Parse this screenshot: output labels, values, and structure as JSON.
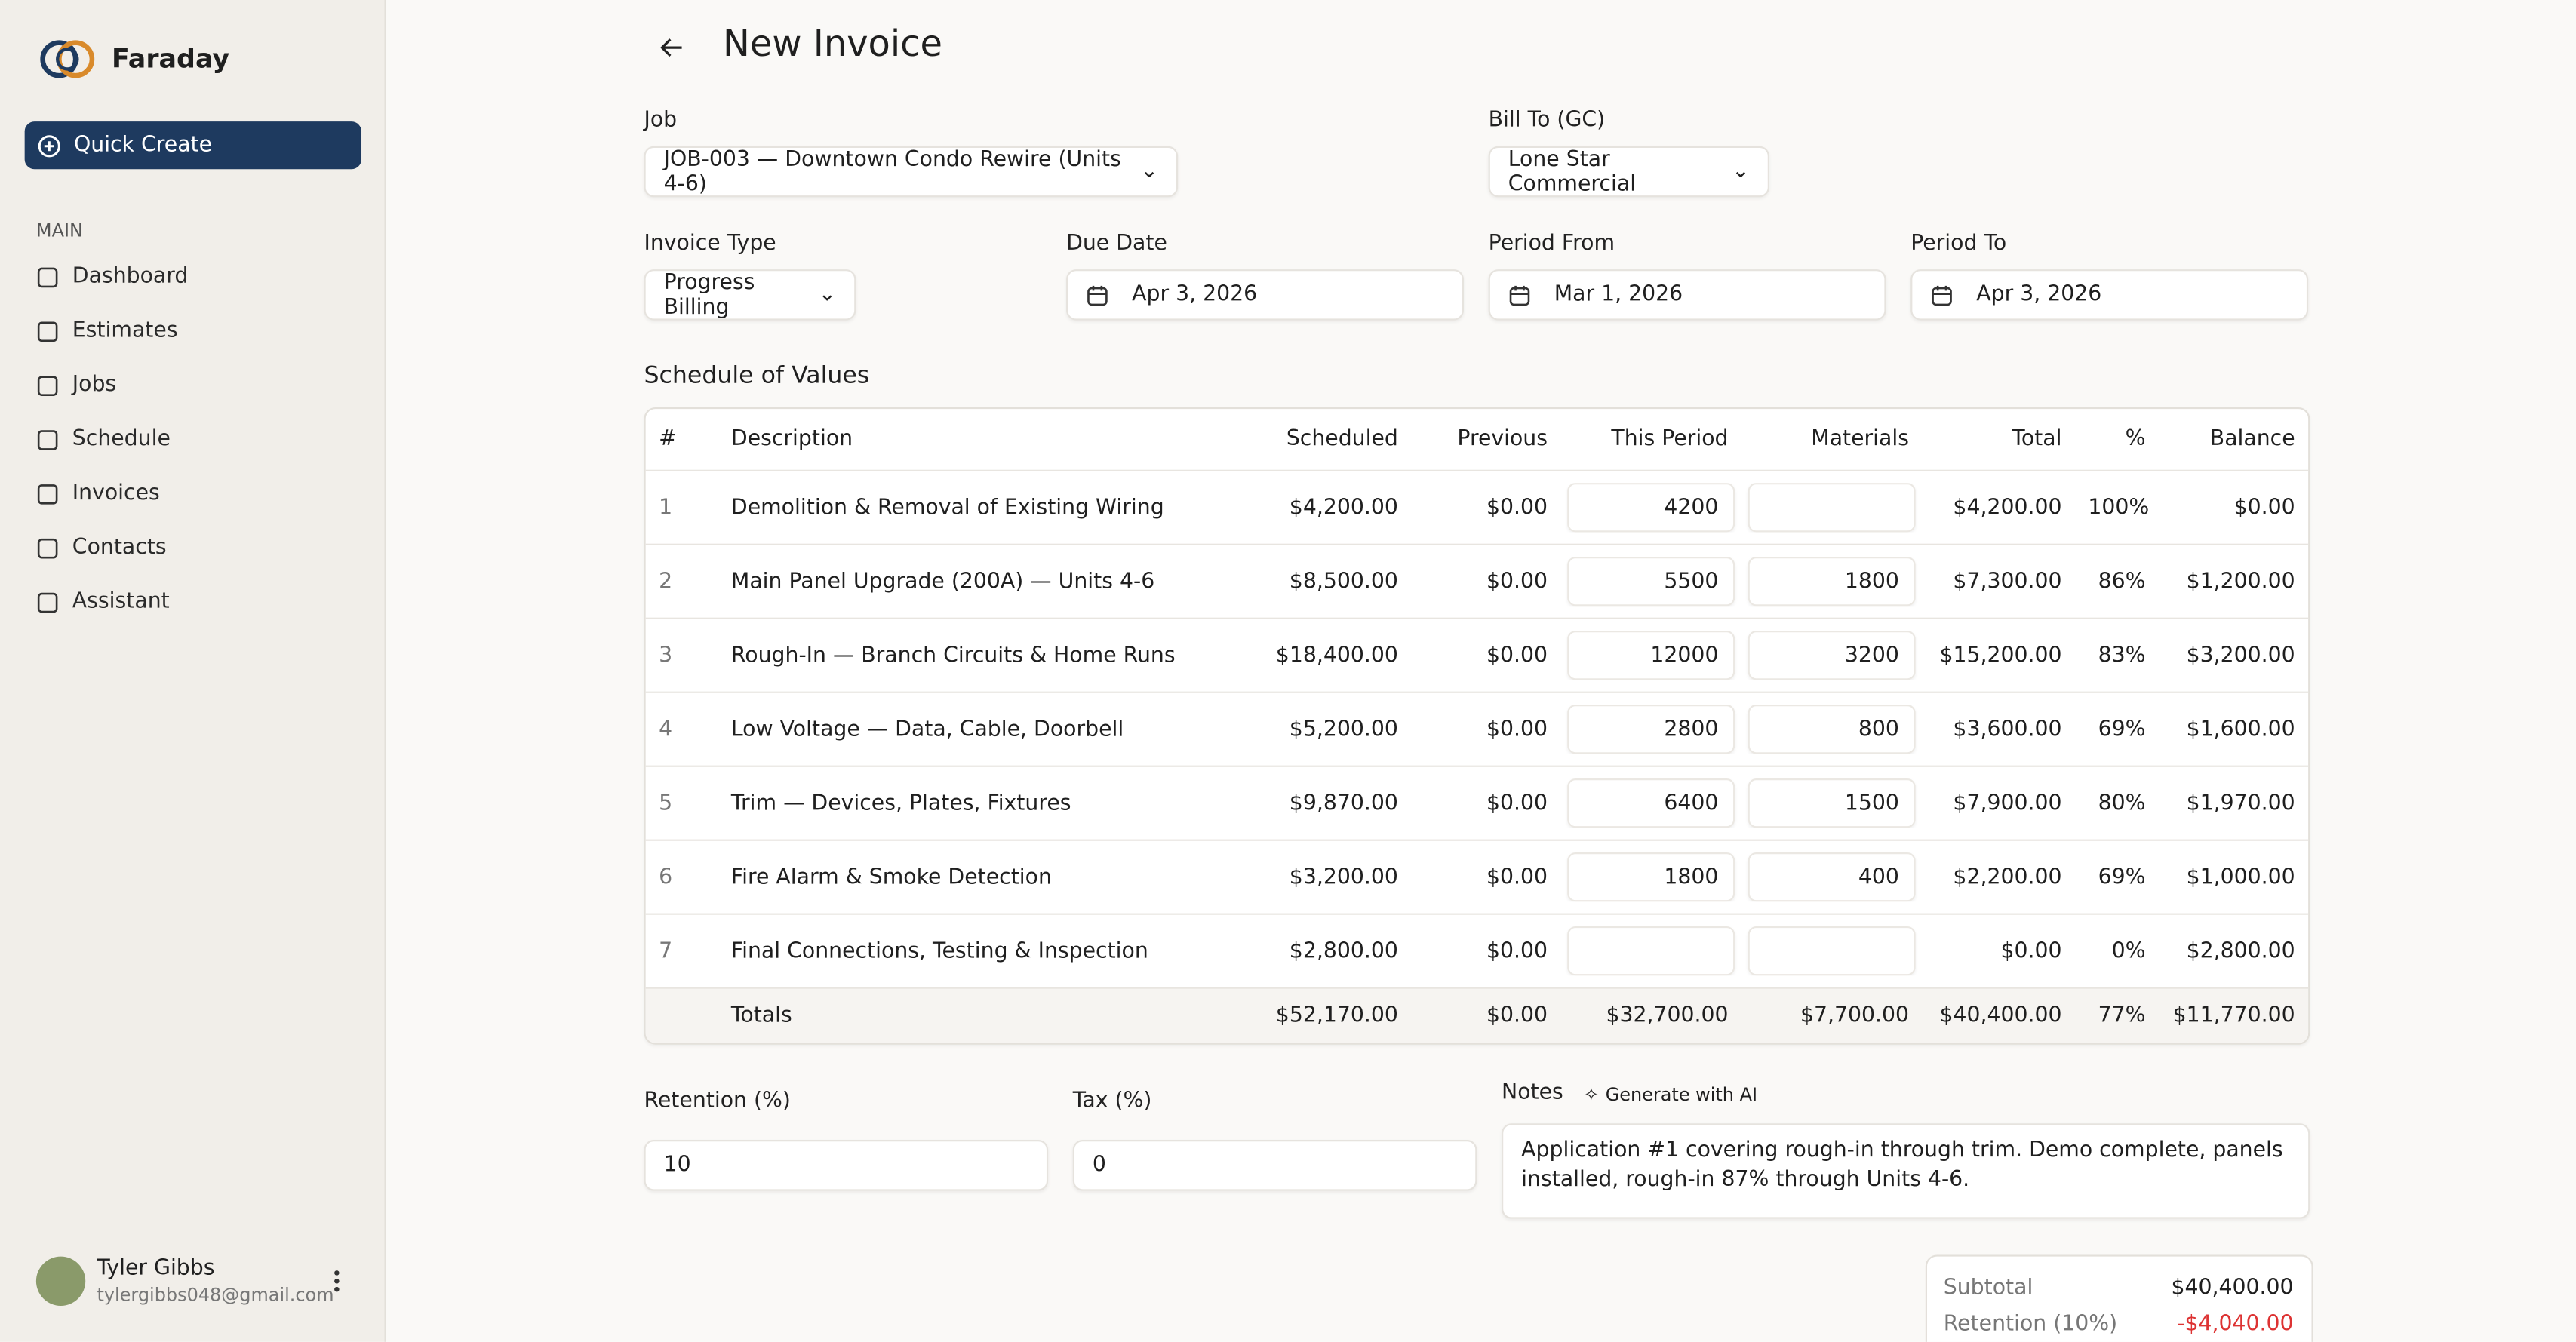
{
  "brand": "Faraday",
  "sidebar": {
    "quick_create": "Quick Create",
    "section": "MAIN",
    "nav": [
      "Dashboard",
      "Estimates",
      "Jobs",
      "Schedule",
      "Invoices",
      "Contacts",
      "Assistant"
    ]
  },
  "user": {
    "name": "Tyler Gibbs",
    "email": "tylergibbs048@gmail.com"
  },
  "header": {
    "title": "New Invoice"
  },
  "form": {
    "job": {
      "label": "Job",
      "value": "JOB-003 — Downtown Condo Rewire (Units 4-6)"
    },
    "bill_to": {
      "label": "Bill To (GC)",
      "value": "Lone Star Commercial"
    },
    "invoice_type": {
      "label": "Invoice Type",
      "value": "Progress Billing"
    },
    "due_date": {
      "label": "Due Date",
      "value": "Apr 3, 2026"
    },
    "period_from": {
      "label": "Period From",
      "value": "Mar 1, 2026"
    },
    "period_to": {
      "label": "Period To",
      "value": "Apr 3, 2026"
    }
  },
  "table": {
    "title": "Schedule of Values",
    "columns": [
      "#",
      "Description",
      "Scheduled",
      "Previous",
      "This Period",
      "Materials",
      "Total",
      "%",
      "Balance"
    ],
    "rows": [
      [
        "1",
        "Demolition & Removal of Existing Wiring",
        "$4,200.00",
        "$0.00",
        "4200",
        null,
        "$4,200.00",
        "100%",
        "$0.00"
      ],
      [
        "2",
        "Main Panel Upgrade (200A) — Units 4-6",
        "$8,500.00",
        "$0.00",
        "5500",
        "1800",
        "$7,300.00",
        "86%",
        "$1,200.00"
      ],
      [
        "3",
        "Rough-In — Branch Circuits & Home Runs",
        "$18,400.00",
        "$0.00",
        "12000",
        "3200",
        "$15,200.00",
        "83%",
        "$3,200.00"
      ],
      [
        "4",
        "Low Voltage — Data, Cable, Doorbell",
        "$5,200.00",
        "$0.00",
        "2800",
        "800",
        "$3,600.00",
        "69%",
        "$1,600.00"
      ],
      [
        "5",
        "Trim — Devices, Plates, Fixtures",
        "$9,870.00",
        "$0.00",
        "6400",
        "1500",
        "$7,900.00",
        "80%",
        "$1,970.00"
      ],
      [
        "6",
        "Fire Alarm & Smoke Detection",
        "$3,200.00",
        "$0.00",
        "1800",
        "400",
        "$2,200.00",
        "69%",
        "$1,000.00"
      ],
      [
        "7",
        "Final Connections, Testing & Inspection",
        "$2,800.00",
        "$0.00",
        null,
        null,
        "$0.00",
        "0%",
        "$2,800.00"
      ]
    ],
    "totals": [
      null,
      "Totals",
      "$52,170.00",
      "$0.00",
      "$32,700.00",
      "$7,700.00",
      "$40,400.00",
      "77%",
      "$11,770.00"
    ]
  },
  "retention": {
    "label": "Retention (%)",
    "value": "10"
  },
  "tax": {
    "label": "Tax (%)",
    "value": "0"
  },
  "notes": {
    "label": "Notes",
    "ai_button": "Generate with AI",
    "text": "Application #1   covering rough-in through trim. Demo complete, panels installed, rough-in 87% through Units 4-6."
  },
  "summary": {
    "subtotal": {
      "label": "Subtotal",
      "value": "$40,400.00"
    },
    "retention": {
      "label": "Retention (10%)",
      "value": "-$4,040.00"
    }
  }
}
